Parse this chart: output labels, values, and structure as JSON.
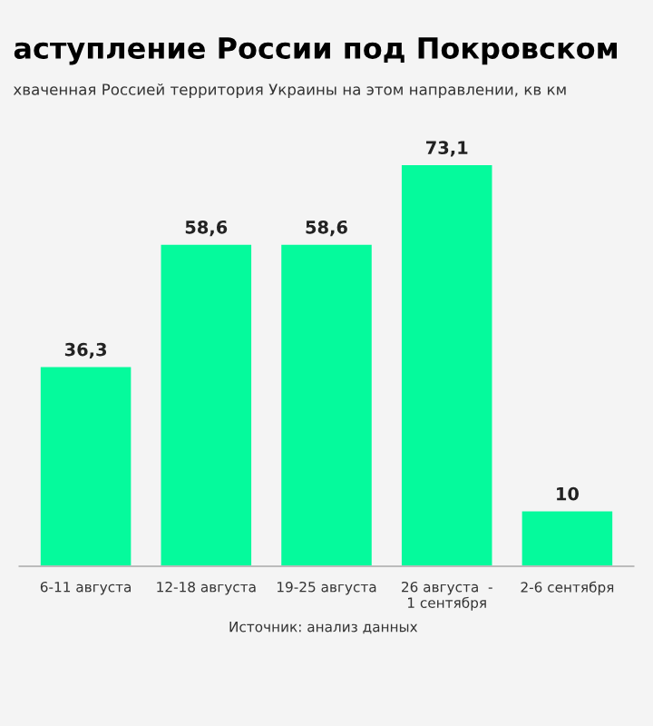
{
  "chart_data": {
    "type": "bar",
    "title": "аступление России под Покровском",
    "subtitle": "хваченная Россией территория Украины на этом направлении, кв км",
    "categories": [
      "6-11 августа",
      "12-18 августа",
      "19-25 августа",
      "26 августа  -\n1 сентября",
      "2-6 сентября"
    ],
    "values": [
      36.3,
      58.6,
      58.6,
      73.1,
      10
    ],
    "value_labels": [
      "36,3",
      "58,6",
      "58,6",
      "73,1",
      "10"
    ],
    "color": "#05fa9c",
    "annotations": [
      "Источник: анализ данных"
    ]
  }
}
